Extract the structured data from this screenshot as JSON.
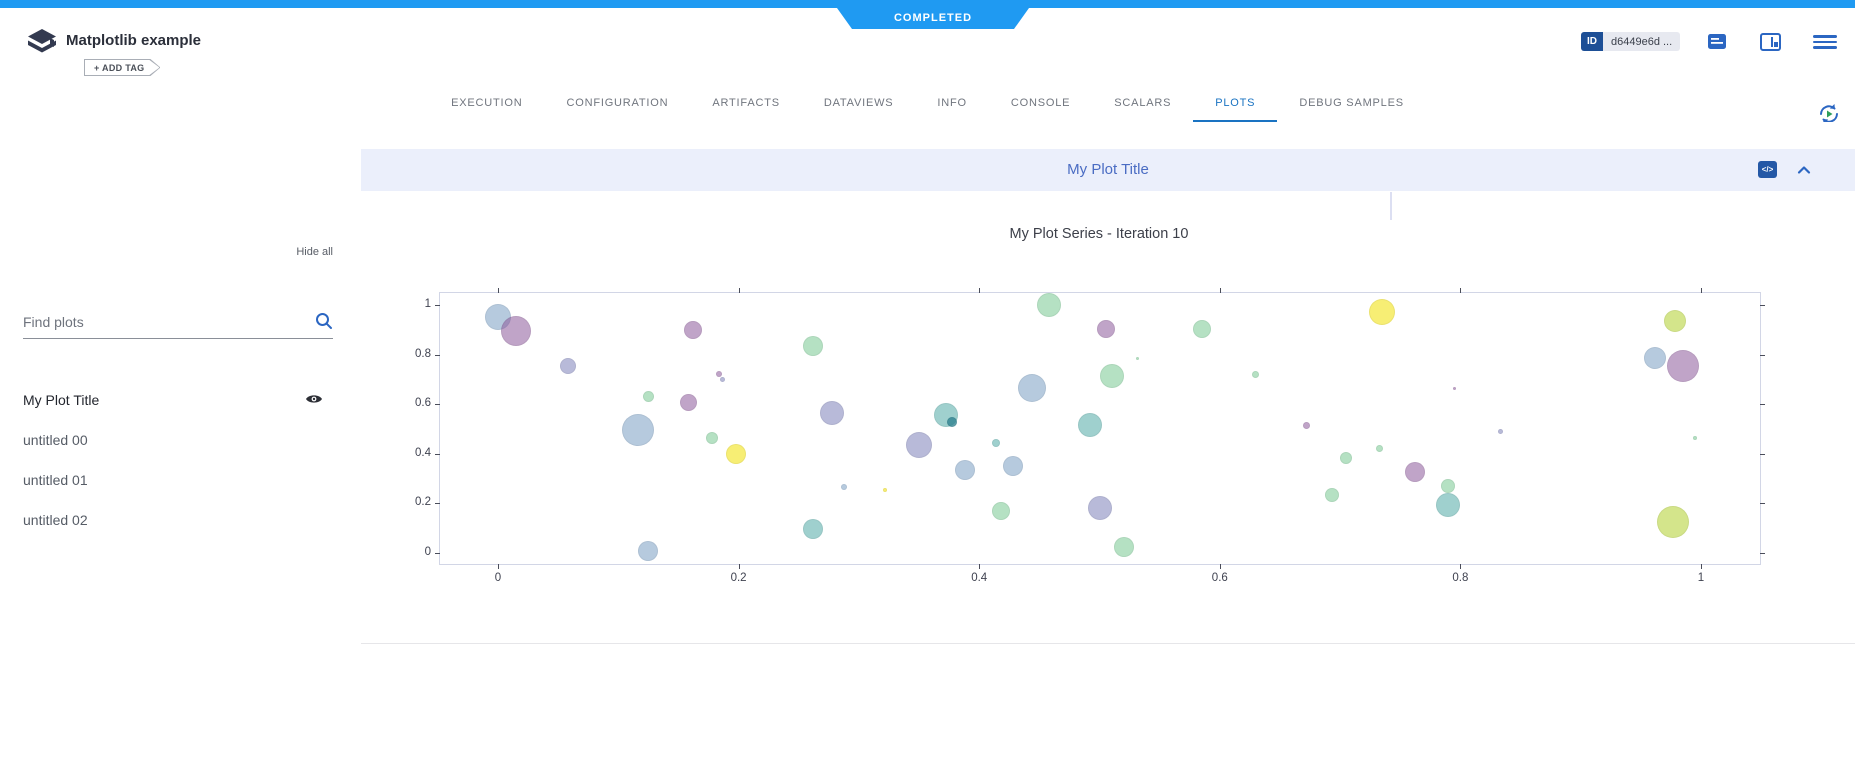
{
  "topbar": {
    "status": "COMPLETED"
  },
  "header": {
    "title": "Matplotlib example",
    "add_tag_label": "+ ADD TAG",
    "id_label": "ID",
    "id_value": "d6449e6d ..."
  },
  "tabs": [
    "EXECUTION",
    "CONFIGURATION",
    "ARTIFACTS",
    "DATAVIEWS",
    "INFO",
    "CONSOLE",
    "SCALARS",
    "PLOTS",
    "DEBUG SAMPLES"
  ],
  "active_tab": "PLOTS",
  "sidebar": {
    "search_placeholder": "Find plots",
    "hide_all_label": "Hide all",
    "items": [
      {
        "label": "My Plot Title",
        "active": true,
        "visible_eye": true
      },
      {
        "label": "untitled 00",
        "active": false,
        "visible_eye": false
      },
      {
        "label": "untitled 01",
        "active": false,
        "visible_eye": false
      },
      {
        "label": "untitled 02",
        "active": false,
        "visible_eye": false
      }
    ]
  },
  "panel": {
    "title": "My Plot Title",
    "code_icon_label": "</>"
  },
  "colors": {
    "topbar_blue": "#1f9af2",
    "accent_blue": "#1a73c2",
    "panel_header_bg": "#ebeffb",
    "panel_title_blue": "#4a6cc3"
  },
  "chart_data": {
    "type": "scatter",
    "title": "My Plot Series - Iteration 10",
    "series_name": "My Plot Series",
    "iteration": 10,
    "x_ticks": [
      0,
      0.2,
      0.4,
      0.6,
      0.8,
      1
    ],
    "y_ticks": [
      0,
      0.2,
      0.4,
      0.6,
      0.8,
      1
    ],
    "xlim": [
      -0.05,
      1.05
    ],
    "ylim": [
      -0.05,
      1.05
    ],
    "grid": false,
    "legend": false,
    "palette": {
      "blue": "rgba(110,150,190,0.5)",
      "purple": "rgba(140,90,155,0.55)",
      "lavender": "rgba(125,130,185,0.55)",
      "green": "rgba(120,200,145,0.55)",
      "teal": "rgba(80,170,165,0.55)",
      "tealdark": "rgba(40,125,140,0.75)",
      "yellow": "rgba(246,235,92,0.85)",
      "yellowgreen": "rgba(198,220,100,0.75)"
    },
    "points": [
      {
        "x": 0.0,
        "y": 0.95,
        "r": 13,
        "c": "blue"
      },
      {
        "x": 0.015,
        "y": 0.895,
        "r": 15,
        "c": "purple"
      },
      {
        "x": 0.058,
        "y": 0.755,
        "r": 8,
        "c": "lavender"
      },
      {
        "x": 0.162,
        "y": 0.9,
        "r": 9,
        "c": "purple"
      },
      {
        "x": 0.184,
        "y": 0.72,
        "r": 3,
        "c": "purple"
      },
      {
        "x": 0.187,
        "y": 0.698,
        "r": 2.5,
        "c": "lavender"
      },
      {
        "x": 0.125,
        "y": 0.63,
        "r": 5.5,
        "c": "green"
      },
      {
        "x": 0.158,
        "y": 0.605,
        "r": 8.5,
        "c": "purple"
      },
      {
        "x": 0.116,
        "y": 0.495,
        "r": 16,
        "c": "blue"
      },
      {
        "x": 0.178,
        "y": 0.465,
        "r": 6,
        "c": "green"
      },
      {
        "x": 0.198,
        "y": 0.4,
        "r": 10,
        "c": "yellow"
      },
      {
        "x": 0.262,
        "y": 0.835,
        "r": 10,
        "c": "green"
      },
      {
        "x": 0.278,
        "y": 0.565,
        "r": 12,
        "c": "lavender"
      },
      {
        "x": 0.288,
        "y": 0.265,
        "r": 3,
        "c": "blue"
      },
      {
        "x": 0.262,
        "y": 0.095,
        "r": 10,
        "c": "teal"
      },
      {
        "x": 0.125,
        "y": 0.01,
        "r": 10,
        "c": "blue"
      },
      {
        "x": 0.322,
        "y": 0.254,
        "r": 2,
        "c": "yellow"
      },
      {
        "x": 0.35,
        "y": 0.435,
        "r": 13,
        "c": "lavender"
      },
      {
        "x": 0.372,
        "y": 0.555,
        "r": 12,
        "c": "teal"
      },
      {
        "x": 0.377,
        "y": 0.528,
        "r": 5,
        "c": "tealdark"
      },
      {
        "x": 0.388,
        "y": 0.335,
        "r": 10,
        "c": "blue"
      },
      {
        "x": 0.414,
        "y": 0.445,
        "r": 4,
        "c": "teal"
      },
      {
        "x": 0.428,
        "y": 0.35,
        "r": 10,
        "c": "blue"
      },
      {
        "x": 0.418,
        "y": 0.17,
        "r": 9,
        "c": "green"
      },
      {
        "x": 0.444,
        "y": 0.665,
        "r": 14,
        "c": "blue"
      },
      {
        "x": 0.458,
        "y": 1.0,
        "r": 12,
        "c": "green"
      },
      {
        "x": 0.505,
        "y": 0.905,
        "r": 9,
        "c": "purple"
      },
      {
        "x": 0.51,
        "y": 0.715,
        "r": 12,
        "c": "green"
      },
      {
        "x": 0.492,
        "y": 0.515,
        "r": 12,
        "c": "teal"
      },
      {
        "x": 0.5,
        "y": 0.18,
        "r": 12,
        "c": "lavender"
      },
      {
        "x": 0.52,
        "y": 0.025,
        "r": 10,
        "c": "green"
      },
      {
        "x": 0.585,
        "y": 0.905,
        "r": 9,
        "c": "green"
      },
      {
        "x": 0.532,
        "y": 0.785,
        "r": 1.5,
        "c": "green"
      },
      {
        "x": 0.63,
        "y": 0.72,
        "r": 3.5,
        "c": "green"
      },
      {
        "x": 0.672,
        "y": 0.515,
        "r": 3.5,
        "c": "purple"
      },
      {
        "x": 0.733,
        "y": 0.42,
        "r": 3.5,
        "c": "green"
      },
      {
        "x": 0.705,
        "y": 0.385,
        "r": 6,
        "c": "green"
      },
      {
        "x": 0.693,
        "y": 0.235,
        "r": 7,
        "c": "green"
      },
      {
        "x": 0.762,
        "y": 0.325,
        "r": 10,
        "c": "purple"
      },
      {
        "x": 0.79,
        "y": 0.27,
        "r": 7,
        "c": "green"
      },
      {
        "x": 0.79,
        "y": 0.195,
        "r": 12,
        "c": "teal"
      },
      {
        "x": 0.833,
        "y": 0.49,
        "r": 2.5,
        "c": "lavender"
      },
      {
        "x": 0.795,
        "y": 0.665,
        "r": 1.5,
        "c": "purple"
      },
      {
        "x": 0.735,
        "y": 0.97,
        "r": 13,
        "c": "yellow"
      },
      {
        "x": 0.962,
        "y": 0.785,
        "r": 11,
        "c": "blue"
      },
      {
        "x": 0.985,
        "y": 0.755,
        "r": 16,
        "c": "purple"
      },
      {
        "x": 0.978,
        "y": 0.935,
        "r": 11,
        "c": "yellowgreen"
      },
      {
        "x": 0.995,
        "y": 0.465,
        "r": 2,
        "c": "green"
      },
      {
        "x": 0.977,
        "y": 0.125,
        "r": 16,
        "c": "yellowgreen"
      }
    ]
  }
}
